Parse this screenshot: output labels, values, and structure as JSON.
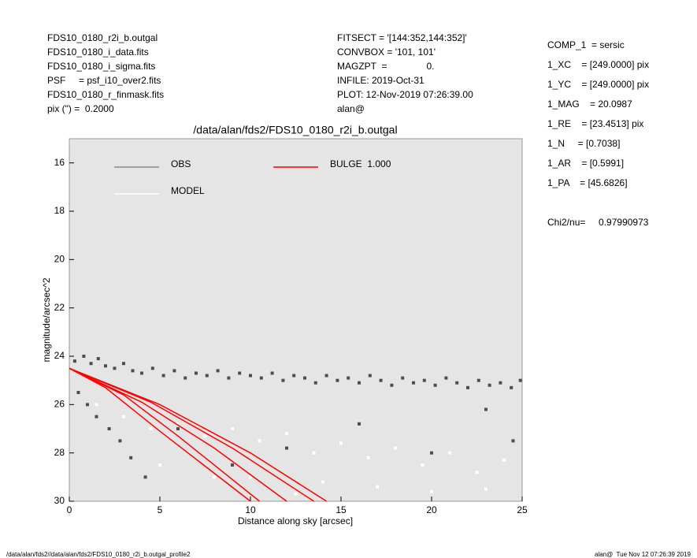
{
  "header": {
    "left": [
      "FDS10_0180_r2i_b.outgal",
      "FDS10_0180_i_data.fits",
      "FDS10_0180_i_sigma.fits",
      "PSF     = psf_i10_over2.fits",
      "FDS10_0180_r_finmask.fits",
      "pix (\") =  0.2000"
    ],
    "center": [
      "FITSECT = '[144:352,144:352]'",
      "CONVBOX = '101, 101'",
      "MAGZPT  =               0.",
      "INFILE: 2019-Oct-31",
      "PLOT: 12-Nov-2019 07:26:39.00",
      "alan@"
    ],
    "params": [
      "COMP_1  = sersic",
      "1_XC    = [249.0000] pix",
      "1_YC    = [249.0000] pix",
      "1_MAG    = 20.0987",
      "1_RE    = [23.4513] pix",
      "1_N     = [0.7038]",
      "1_AR    = [0.5991]",
      "1_PA    = [45.6826]"
    ],
    "chi2": "Chi2/nu=     0.97990973"
  },
  "footer": {
    "left": "/data/alan/fds2//data/alan/fds2/FDS10_0180_r2i_b.outgal_profile2",
    "right": "alan@  Tue Nov 12 07:26:39 2019"
  },
  "chart_data": {
    "type": "scatter",
    "title": "/data/alan/fds2/FDS10_0180_r2i_b.outgal",
    "xlabel": "Distance along sky [arcsec]",
    "ylabel": "magnitude/arcsec^2",
    "xlim": [
      0,
      25
    ],
    "ylim": [
      30,
      15
    ],
    "xticks": [
      0,
      5,
      10,
      15,
      20,
      25
    ],
    "yticks": [
      16,
      18,
      20,
      22,
      24,
      26,
      28,
      30
    ],
    "background": "#e5e5e5",
    "series": [
      {
        "name": "OBS",
        "color": "#4d4d4d",
        "x": [
          0.3,
          0.8,
          1.2,
          1.6,
          2.0,
          2.5,
          3.0,
          3.5,
          4.0,
          4.6,
          5.2,
          5.8,
          6.4,
          7.0,
          7.6,
          8.2,
          8.8,
          9.4,
          10.0,
          10.6,
          11.2,
          11.8,
          12.4,
          13.0,
          13.6,
          14.2,
          14.8,
          15.4,
          16.0,
          16.6,
          17.2,
          17.8,
          18.4,
          19.0,
          19.6,
          20.2,
          20.8,
          21.4,
          22.0,
          22.6,
          23.2,
          23.8,
          24.4,
          24.9,
          0.5,
          1.0,
          1.5,
          2.2,
          2.8,
          3.4,
          4.2,
          6.0,
          9.0,
          12.0,
          16.0,
          20.0,
          23.0,
          24.5
        ],
        "values": [
          24.2,
          24.0,
          24.3,
          24.1,
          24.4,
          24.5,
          24.3,
          24.6,
          24.7,
          24.5,
          24.8,
          24.6,
          24.9,
          24.7,
          24.8,
          24.6,
          24.9,
          24.7,
          24.8,
          24.9,
          24.7,
          25.0,
          24.8,
          24.9,
          25.1,
          24.8,
          25.0,
          24.9,
          25.1,
          24.8,
          25.0,
          25.2,
          24.9,
          25.1,
          25.0,
          25.2,
          24.9,
          25.1,
          25.3,
          25.0,
          25.2,
          25.1,
          25.3,
          25.0,
          25.5,
          26.0,
          26.5,
          27.0,
          27.5,
          28.2,
          29.0,
          27.0,
          28.5,
          27.8,
          26.8,
          28.0,
          26.2,
          27.5
        ]
      },
      {
        "name": "MODEL",
        "color": "#ffffff",
        "x": [
          1.5,
          3.0,
          4.5,
          6.0,
          7.5,
          9.0,
          10.5,
          12.0,
          13.5,
          15.0,
          16.5,
          18.0,
          19.5,
          21.0,
          22.5,
          24.0,
          5.0,
          10.0,
          14.0,
          17.0,
          20.0,
          23.0,
          8.0,
          12.5
        ],
        "values": [
          26.0,
          26.5,
          27.0,
          26.8,
          27.3,
          27.0,
          27.5,
          27.2,
          28.0,
          27.6,
          28.2,
          27.8,
          28.5,
          28.0,
          28.8,
          28.3,
          28.5,
          29.0,
          29.2,
          29.4,
          29.6,
          29.5,
          29.0,
          29.7
        ]
      },
      {
        "name": "BULGE  1.000",
        "color": "#ff0000",
        "type": "line",
        "lines": [
          {
            "x": [
              0,
              2,
              5,
              10.0
            ],
            "values": [
              24.5,
              25.3,
              27.1,
              30
            ]
          },
          {
            "x": [
              0,
              3,
              6,
              10.5
            ],
            "values": [
              24.5,
              25.6,
              27.3,
              30
            ]
          },
          {
            "x": [
              0,
              4,
              8,
              12.0
            ],
            "values": [
              24.5,
              25.9,
              27.8,
              30
            ]
          },
          {
            "x": [
              0,
              4.5,
              9,
              13.5
            ],
            "values": [
              24.5,
              25.9,
              27.8,
              30
            ]
          },
          {
            "x": [
              0,
              5,
              10,
              14.2
            ],
            "values": [
              24.5,
              26.0,
              28.0,
              30
            ]
          }
        ]
      }
    ]
  }
}
